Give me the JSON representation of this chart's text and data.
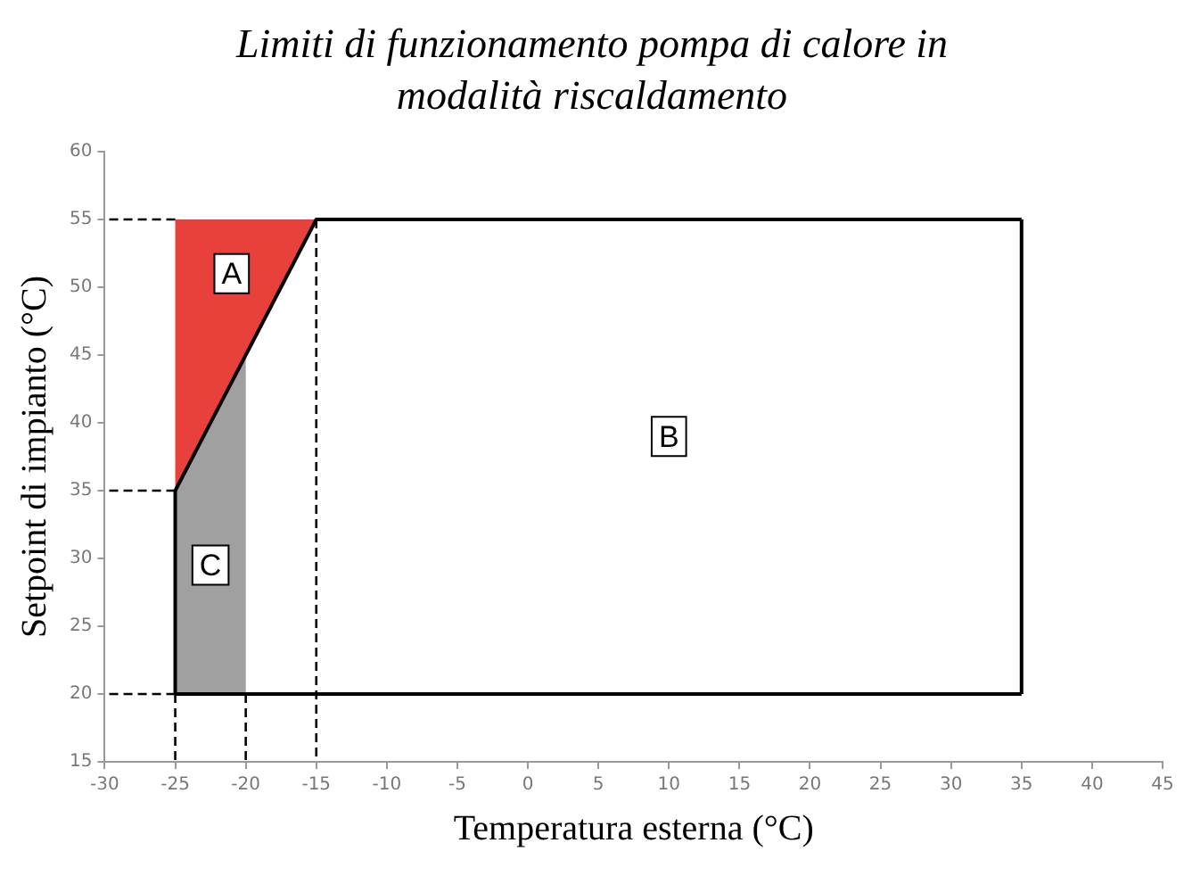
{
  "chart_data": {
    "type": "line",
    "title": "Limiti di funzionamento pompa di calore in modalità riscaldamento",
    "xlabel": "Temperatura esterna (°C)",
    "ylabel": "Setpoint di impianto (°C)",
    "xlim": [
      -30,
      45
    ],
    "xticks": [
      -30,
      -25,
      -20,
      -15,
      -10,
      -5,
      0,
      5,
      10,
      15,
      20,
      25,
      30,
      35,
      40,
      45
    ],
    "ylim": [
      15,
      60
    ],
    "yticks": [
      15,
      20,
      25,
      30,
      35,
      40,
      45,
      50,
      55,
      60
    ],
    "grid": false,
    "legend": false,
    "marker": "none",
    "series": [
      {
        "type": "area",
        "color": "#e8413c",
        "x": [
          -25,
          -25,
          -15,
          -25
        ],
        "values": [
          35,
          55,
          55,
          35
        ]
      },
      {
        "type": "area",
        "color": "#a0a0a0",
        "x": [
          -25,
          -25,
          -20,
          -20,
          -25
        ],
        "values": [
          20,
          35,
          45,
          20,
          20
        ]
      },
      {
        "color": "#000000",
        "x": [
          -25,
          -15,
          35
        ],
        "values": [
          35,
          55,
          55
        ]
      },
      {
        "color": "#000000",
        "x": [
          -25,
          35
        ],
        "values": [
          20,
          20
        ]
      },
      {
        "color": "#000000",
        "x": [
          -25,
          -25
        ],
        "values": [
          20,
          35
        ]
      },
      {
        "color": "#000000",
        "x": [
          35,
          35
        ],
        "values": [
          20,
          55
        ]
      },
      {
        "color": "#000000",
        "line_style": "dashed",
        "x": [
          -25,
          -30
        ],
        "values": [
          55,
          55
        ]
      },
      {
        "color": "#000000",
        "line_style": "dashed",
        "x": [
          -25,
          -30
        ],
        "values": [
          35,
          35
        ]
      },
      {
        "color": "#000000",
        "line_style": "dashed",
        "x": [
          -25,
          -30
        ],
        "values": [
          20,
          20
        ]
      },
      {
        "color": "#000000",
        "line_style": "dashed",
        "x": [
          -25,
          -25
        ],
        "values": [
          20,
          15
        ]
      },
      {
        "color": "#000000",
        "line_style": "dashed",
        "x": [
          -20,
          -20
        ],
        "values": [
          20,
          15
        ]
      },
      {
        "color": "#000000",
        "line_style": "dashed",
        "x": [
          -15,
          -15
        ],
        "values": [
          55,
          15
        ]
      }
    ],
    "annotations": [
      {
        "text": "A",
        "x": -21,
        "y": 51
      },
      {
        "text": "B",
        "x": 10,
        "y": 39
      },
      {
        "text": "C",
        "x": -22.5,
        "y": 29.5
      }
    ]
  }
}
